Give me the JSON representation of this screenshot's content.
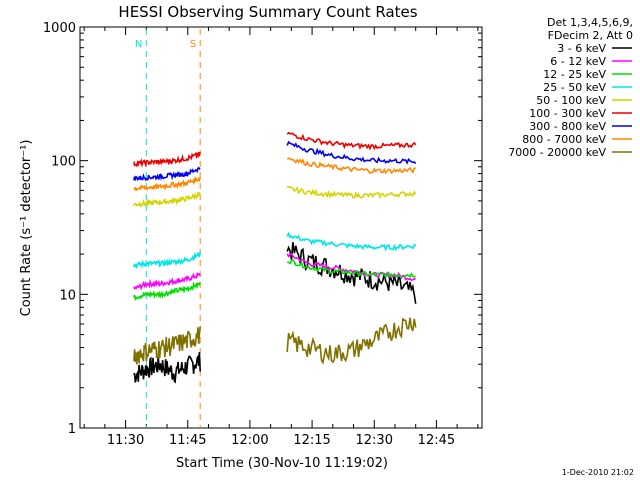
{
  "chart_data": {
    "type": "line",
    "title": "HESSI Observing Summary Count Rates",
    "xlabel": "Start Time (30-Nov-10 11:19:02)",
    "ylabel": "Count Rate (s⁻¹ detector⁻¹)",
    "yscale": "log",
    "ylim": [
      1,
      1000
    ],
    "xlim_minutes": [
      "11:19",
      "12:56"
    ],
    "x_ticks": [
      "11:30",
      "11:45",
      "12:00",
      "12:15",
      "12:30",
      "12:45"
    ],
    "y_ticks": [
      "1",
      "10",
      "100",
      "1000"
    ],
    "legend_header": [
      "Det 1,3,4,5,6,9,",
      "FDecim 2, Att 0"
    ],
    "legend_position": "top-right",
    "footer": "1-Dec-2010 21:02",
    "markers": [
      {
        "label": "N",
        "time": "11:35",
        "color": "#00e6e6"
      },
      {
        "label": "S",
        "time": "11:48",
        "color": "#ff8800"
      }
    ],
    "series": [
      {
        "name": "3 - 6 keV",
        "color": "#000000",
        "seg1": {
          "start": "11:32",
          "end": "11:48",
          "values": [
            2.5,
            2.8,
            3.0,
            2.6,
            2.9,
            3.2
          ]
        },
        "seg2": {
          "start": "12:09",
          "end": "12:40",
          "values": [
            22,
            18,
            16,
            14,
            13,
            12,
            10
          ]
        }
      },
      {
        "name": "6 - 12 keV",
        "color": "#ff00ff",
        "seg1": {
          "start": "11:32",
          "end": "11:48",
          "values": [
            11,
            12,
            12,
            12.5,
            13,
            14
          ]
        },
        "seg2": {
          "start": "12:09",
          "end": "12:40",
          "values": [
            20,
            17,
            16,
            15,
            14,
            14,
            13
          ]
        }
      },
      {
        "name": "12 - 25 keV",
        "color": "#00dd00",
        "seg1": {
          "start": "11:32",
          "end": "11:48",
          "values": [
            9.5,
            10,
            10,
            10.5,
            11,
            12
          ]
        },
        "seg2": {
          "start": "12:09",
          "end": "12:40",
          "values": [
            18,
            16,
            15,
            14.5,
            14,
            14,
            14
          ]
        }
      },
      {
        "name": "25 - 50 keV",
        "color": "#00e6e6",
        "seg1": {
          "start": "11:32",
          "end": "11:48",
          "values": [
            16.5,
            17,
            17,
            17.5,
            18,
            20
          ]
        },
        "seg2": {
          "start": "12:09",
          "end": "12:40",
          "values": [
            28,
            25,
            24,
            23,
            22.5,
            22.5,
            23
          ]
        }
      },
      {
        "name": "50 - 100 keV",
        "color": "#d4d400",
        "seg1": {
          "start": "11:32",
          "end": "11:48",
          "values": [
            47,
            48,
            49,
            50,
            52,
            56
          ]
        },
        "seg2": {
          "start": "12:09",
          "end": "12:40",
          "values": [
            62,
            58,
            56,
            55,
            55,
            56,
            57
          ]
        }
      },
      {
        "name": "100 - 300 keV",
        "color": "#ee0000",
        "seg1": {
          "start": "11:32",
          "end": "11:48",
          "values": [
            95,
            97,
            98,
            100,
            104,
            112
          ]
        },
        "seg2": {
          "start": "12:09",
          "end": "12:40",
          "values": [
            160,
            145,
            135,
            130,
            128,
            130,
            132
          ]
        }
      },
      {
        "name": "300 - 800 keV",
        "color": "#0000ee",
        "seg1": {
          "start": "11:32",
          "end": "11:48",
          "values": [
            74,
            75,
            76,
            78,
            80,
            88
          ]
        },
        "seg2": {
          "start": "12:09",
          "end": "12:40",
          "values": [
            135,
            120,
            110,
            104,
            100,
            100,
            98
          ]
        }
      },
      {
        "name": "800 - 7000 keV",
        "color": "#ff8800",
        "seg1": {
          "start": "11:32",
          "end": "11:48",
          "values": [
            62,
            63,
            64,
            66,
            68,
            74
          ]
        },
        "seg2": {
          "start": "12:09",
          "end": "12:40",
          "values": [
            105,
            95,
            90,
            86,
            84,
            84,
            85
          ]
        }
      },
      {
        "name": "7000 - 20000 keV",
        "color": "#807000",
        "seg1": {
          "start": "11:32",
          "end": "11:48",
          "values": [
            3.5,
            3.8,
            4.0,
            4.2,
            4.5,
            5.0
          ]
        },
        "seg2": {
          "start": "12:09",
          "end": "12:40",
          "values": [
            4.5,
            4.0,
            3.6,
            3.8,
            4.5,
            5.5,
            6.5
          ]
        }
      }
    ]
  }
}
